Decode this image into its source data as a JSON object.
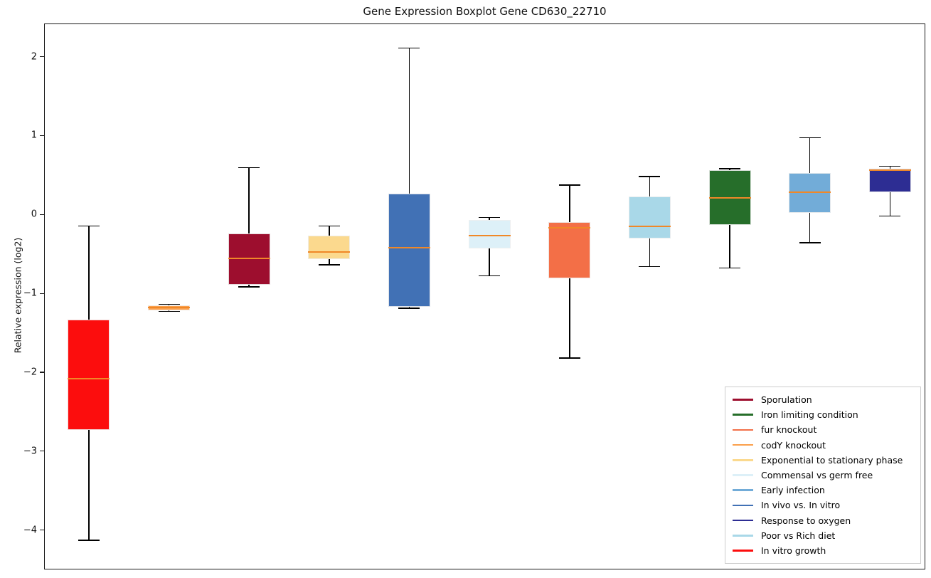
{
  "chart_data": {
    "type": "boxplot",
    "title": "Gene Expression Boxplot Gene CD630_22710",
    "ylabel": "Relative expression (log2)",
    "xlabel": "",
    "ylim": [
      -4.5,
      2.42
    ],
    "yticks": [
      2,
      1,
      0,
      -1,
      -2,
      -3,
      -4
    ],
    "grid": false,
    "x_tick_labels": [],
    "legend_position": "lower right",
    "median_color": "#f08828",
    "whisker_color": "#000000",
    "boxes": [
      {
        "name": "In vitro growth",
        "color": "#fc0d0d",
        "whislo": -4.12,
        "q1": -2.72,
        "med": -2.07,
        "q3": -1.32,
        "whishi": -0.14
      },
      {
        "name": "codY knockout",
        "color": "#fba04c",
        "whislo": -1.22,
        "q1": -1.21,
        "med": -1.17,
        "q3": -1.14,
        "whishi": -1.13
      },
      {
        "name": "Sporulation",
        "color": "#9d0e2e",
        "whislo": -0.91,
        "q1": -0.88,
        "med": -0.55,
        "q3": -0.23,
        "whishi": 0.6
      },
      {
        "name": "Exponential to stationary phase",
        "color": "#fbd98e",
        "whislo": -0.63,
        "q1": -0.56,
        "med": -0.47,
        "q3": -0.26,
        "whishi": -0.14
      },
      {
        "name": "In vivo vs. In vitro",
        "color": "#4171b5",
        "whislo": -1.18,
        "q1": -1.16,
        "med": -0.41,
        "q3": 0.27,
        "whishi": 2.12
      },
      {
        "name": "Commensal vs germ free",
        "color": "#ddf0f8",
        "whislo": -0.77,
        "q1": -0.42,
        "med": -0.26,
        "q3": -0.06,
        "whishi": -0.03
      },
      {
        "name": "fur knockout",
        "color": "#f36f47",
        "whislo": -1.81,
        "q1": -0.8,
        "med": -0.16,
        "q3": -0.09,
        "whishi": 0.38
      },
      {
        "name": "Poor vs Rich diet",
        "color": "#a9d8e8",
        "whislo": -0.65,
        "q1": -0.3,
        "med": -0.14,
        "q3": 0.24,
        "whishi": 0.49
      },
      {
        "name": "Iron limiting condition",
        "color": "#266e2a",
        "whislo": -0.67,
        "q1": -0.12,
        "med": 0.22,
        "q3": 0.57,
        "whishi": 0.59
      },
      {
        "name": "Early infection",
        "color": "#72acd8",
        "whislo": -0.35,
        "q1": 0.03,
        "med": 0.29,
        "q3": 0.53,
        "whishi": 0.98
      },
      {
        "name": "Response to oxygen",
        "color": "#2d2d93",
        "whislo": -0.01,
        "q1": 0.29,
        "med": 0.57,
        "q3": 0.59,
        "whishi": 0.62
      }
    ],
    "legend": [
      {
        "label": "Sporulation",
        "color": "#9d0e2e"
      },
      {
        "label": "Iron limiting condition",
        "color": "#266e2a"
      },
      {
        "label": "fur knockout",
        "color": "#f36f47"
      },
      {
        "label": "codY knockout",
        "color": "#fba04c"
      },
      {
        "label": "Exponential to stationary phase",
        "color": "#fbd98e"
      },
      {
        "label": "Commensal vs germ free",
        "color": "#ddf0f8"
      },
      {
        "label": "Early infection",
        "color": "#72acd8"
      },
      {
        "label": "In vivo vs. In vitro",
        "color": "#4171b5"
      },
      {
        "label": "Response to oxygen",
        "color": "#2d2d93"
      },
      {
        "label": "Poor vs Rich diet",
        "color": "#a9d8e8"
      },
      {
        "label": "In vitro growth",
        "color": "#fc0d0d"
      }
    ]
  }
}
